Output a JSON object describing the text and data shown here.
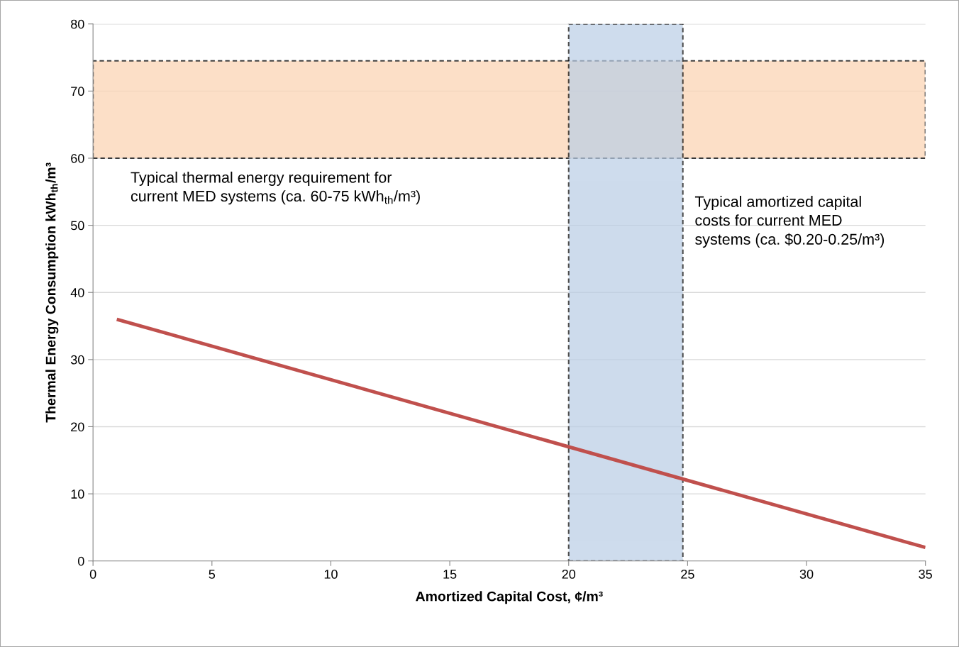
{
  "chart_data": {
    "type": "line",
    "xlabel": "Amortized Capital Cost, ¢/m³",
    "ylabel": "Thermal Energy Consumption kWh$_{th}$/m³",
    "x": [
      1,
      35
    ],
    "series": [
      {
        "color": "#c0504d",
        "values": [
          36,
          2
        ]
      }
    ],
    "xlim": [
      0,
      35
    ],
    "xticks": [
      0,
      5,
      10,
      15,
      20,
      25,
      30,
      35
    ],
    "ylim": [
      0,
      80
    ],
    "yticks": [
      0,
      10,
      20,
      30,
      40,
      50,
      60,
      70,
      80
    ],
    "grid": "y",
    "bands": [
      {
        "axis": "y",
        "from": 60,
        "to": 74.5,
        "label": "Typical thermal energy requirement for\ncurrent MED systems (ca. 60-75 kWh$_{th}$/m³)",
        "color": "#fbd5b5"
      },
      {
        "axis": "x",
        "from": 20,
        "to": 24.8,
        "label": "Typical amortized capital\ncosts for current MED\nsystems (ca. $0.20-0.25/m³)",
        "color": "#b9cde5"
      }
    ]
  }
}
